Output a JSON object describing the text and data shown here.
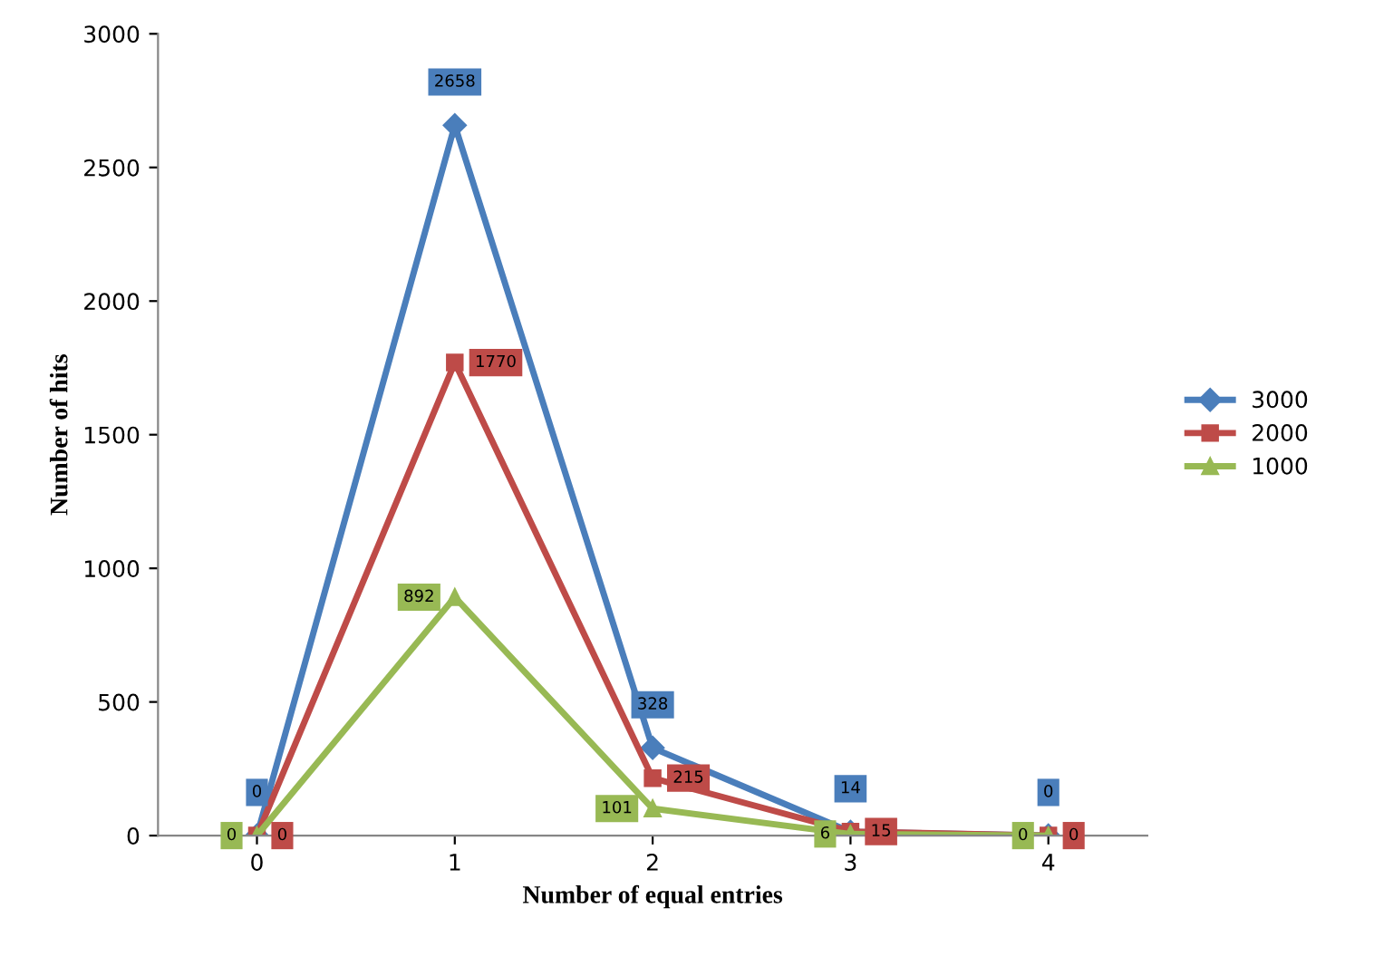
{
  "chart_data": {
    "type": "line",
    "xlabel": "Number of equal entries",
    "ylabel": "Number of hits",
    "categories": [
      "0",
      "1",
      "2",
      "3",
      "4"
    ],
    "series": [
      {
        "name": "3000",
        "color": "#4a7ebb",
        "values": [
          0,
          2658,
          328,
          14,
          0
        ],
        "marker": "diamond"
      },
      {
        "name": "2000",
        "color": "#be4b48",
        "values": [
          0,
          1770,
          215,
          15,
          0
        ],
        "marker": "square"
      },
      {
        "name": "1000",
        "color": "#98b954",
        "values": [
          0,
          892,
          101,
          6,
          0
        ],
        "marker": "triangle"
      }
    ],
    "ylim": [
      0,
      3000
    ],
    "yticks": [
      0,
      500,
      1000,
      1500,
      2000,
      2500,
      3000
    ],
    "data_labels": true,
    "grid": false,
    "legend": "right",
    "line_style": "solid"
  }
}
